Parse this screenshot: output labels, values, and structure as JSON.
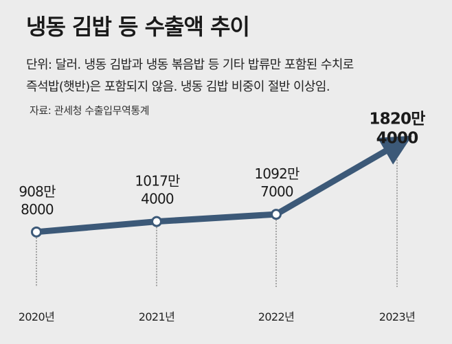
{
  "header": {
    "title": "냉동 김밥 등 수출액 추이",
    "subtitle_line1": "단위: 달러. 냉동 김밥과 냉동 볶음밥 등 기타 밥류만 포함된 수치로",
    "subtitle_line2": "즉석밥(햇반)은 포함되지 않음. 냉동 김밥 비중이 절반 이상임.",
    "source": "자료: 관세청 수출입무역통계"
  },
  "colors": {
    "line": "#3c5978",
    "background": "#ececec"
  },
  "chart_data": {
    "type": "line",
    "title": "냉동 김밥 등 수출액 추이",
    "unit": "달러",
    "categories": [
      "2020년",
      "2021년",
      "2022년",
      "2023년"
    ],
    "values": [
      9088000,
      10174000,
      10927000,
      18204000
    ],
    "labels": [
      [
        "908만",
        "8000"
      ],
      [
        "1017만",
        "4000"
      ],
      [
        "1092만",
        "7000"
      ],
      [
        "1820만",
        "4000"
      ]
    ],
    "ylim": [
      5500000,
      19000000
    ],
    "grid": false,
    "last_point_arrow": true
  }
}
